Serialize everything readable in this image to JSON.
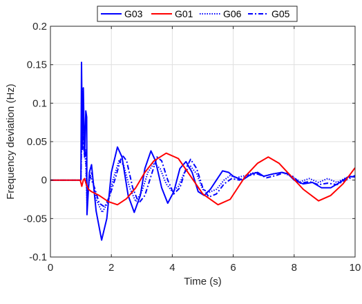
{
  "chart_data": {
    "type": "line",
    "xlabel": "Time (s)",
    "ylabel": "Frequency deviation (Hz)",
    "xlim": [
      0,
      10
    ],
    "ylim": [
      -0.1,
      0.2
    ],
    "xticks": [
      0,
      2,
      4,
      6,
      8,
      10
    ],
    "yticks": [
      -0.1,
      -0.05,
      0,
      0.05,
      0.1,
      0.15,
      0.2
    ],
    "ytick_labels": [
      "-0.1",
      "-0.05",
      "0",
      "0.05",
      "0.1",
      "0.15",
      "0.2"
    ],
    "xtick_labels": [
      "0",
      "2",
      "4",
      "6",
      "8",
      "10"
    ],
    "grid": true,
    "legend_position": "top-center",
    "series": [
      {
        "name": "G03",
        "color": "#0000ff",
        "dash": "solid",
        "points": [
          [
            0,
            0
          ],
          [
            1.0,
            0
          ],
          [
            1.02,
            0.153
          ],
          [
            1.05,
            0.04
          ],
          [
            1.08,
            0.12
          ],
          [
            1.12,
            0.03
          ],
          [
            1.16,
            0.09
          ],
          [
            1.19,
            0.082
          ],
          [
            1.2,
            -0.045
          ],
          [
            1.28,
            0.01
          ],
          [
            1.35,
            0.02
          ],
          [
            1.5,
            -0.04
          ],
          [
            1.68,
            -0.078
          ],
          [
            1.85,
            -0.05
          ],
          [
            2.0,
            0.01
          ],
          [
            2.2,
            0.043
          ],
          [
            2.35,
            0.03
          ],
          [
            2.55,
            -0.02
          ],
          [
            2.75,
            -0.042
          ],
          [
            2.95,
            -0.02
          ],
          [
            3.1,
            0.015
          ],
          [
            3.3,
            0.038
          ],
          [
            3.45,
            0.025
          ],
          [
            3.65,
            -0.01
          ],
          [
            3.85,
            -0.03
          ],
          [
            4.05,
            -0.015
          ],
          [
            4.25,
            0.015
          ],
          [
            4.45,
            0.024
          ],
          [
            4.65,
            0.01
          ],
          [
            4.85,
            -0.015
          ],
          [
            5.05,
            -0.02
          ],
          [
            5.25,
            -0.012
          ],
          [
            5.45,
            0.0
          ],
          [
            5.65,
            0.012
          ],
          [
            5.85,
            0.01
          ],
          [
            6.0,
            0.005
          ],
          [
            6.3,
            0.0
          ],
          [
            6.6,
            0.008
          ],
          [
            6.8,
            0.01
          ],
          [
            7.0,
            0.005
          ],
          [
            7.3,
            0.008
          ],
          [
            7.6,
            0.01
          ],
          [
            7.8,
            0.008
          ],
          [
            8.0,
            0.0
          ],
          [
            8.3,
            -0.005
          ],
          [
            8.6,
            -0.003
          ],
          [
            8.9,
            -0.01
          ],
          [
            9.2,
            -0.01
          ],
          [
            9.5,
            -0.003
          ],
          [
            9.8,
            0.005
          ],
          [
            10.0,
            0.004
          ]
        ]
      },
      {
        "name": "G01",
        "color": "#ff0000",
        "dash": "solid",
        "points": [
          [
            0,
            0
          ],
          [
            0.98,
            0
          ],
          [
            1.03,
            -0.008
          ],
          [
            1.08,
            0.0
          ],
          [
            1.12,
            0.002
          ],
          [
            1.18,
            -0.006
          ],
          [
            1.25,
            -0.012
          ],
          [
            1.35,
            -0.015
          ],
          [
            1.6,
            -0.02
          ],
          [
            1.9,
            -0.028
          ],
          [
            2.2,
            -0.032
          ],
          [
            2.5,
            -0.024
          ],
          [
            2.8,
            -0.01
          ],
          [
            3.1,
            0.01
          ],
          [
            3.4,
            0.025
          ],
          [
            3.8,
            0.035
          ],
          [
            4.2,
            0.028
          ],
          [
            4.6,
            0.005
          ],
          [
            5.0,
            -0.018
          ],
          [
            5.5,
            -0.032
          ],
          [
            5.9,
            -0.025
          ],
          [
            6.4,
            0.005
          ],
          [
            6.8,
            0.022
          ],
          [
            7.15,
            0.03
          ],
          [
            7.5,
            0.022
          ],
          [
            7.9,
            0.005
          ],
          [
            8.3,
            -0.012
          ],
          [
            8.8,
            -0.027
          ],
          [
            9.2,
            -0.02
          ],
          [
            9.6,
            -0.005
          ],
          [
            10.0,
            0.016
          ]
        ]
      },
      {
        "name": "G06",
        "color": "#0000ff",
        "dash": "dotted",
        "points": [
          [
            0,
            0
          ],
          [
            1.0,
            0
          ],
          [
            1.02,
            0.045
          ],
          [
            1.05,
            0.12
          ],
          [
            1.08,
            0.06
          ],
          [
            1.12,
            0.04
          ],
          [
            1.16,
            0.02
          ],
          [
            1.2,
            -0.03
          ],
          [
            1.28,
            0.002
          ],
          [
            1.35,
            0.01
          ],
          [
            1.5,
            -0.025
          ],
          [
            1.7,
            -0.042
          ],
          [
            1.9,
            -0.028
          ],
          [
            2.05,
            0.0
          ],
          [
            2.25,
            0.025
          ],
          [
            2.4,
            0.02
          ],
          [
            2.6,
            -0.01
          ],
          [
            2.8,
            -0.028
          ],
          [
            3.0,
            -0.015
          ],
          [
            3.2,
            0.01
          ],
          [
            3.4,
            0.022
          ],
          [
            3.6,
            0.015
          ],
          [
            3.8,
            -0.005
          ],
          [
            4.0,
            -0.015
          ],
          [
            4.2,
            -0.008
          ],
          [
            4.4,
            0.01
          ],
          [
            4.6,
            0.018
          ],
          [
            4.8,
            0.008
          ],
          [
            5.0,
            -0.012
          ],
          [
            5.2,
            -0.016
          ],
          [
            5.45,
            -0.012
          ],
          [
            5.7,
            0.0
          ],
          [
            5.9,
            0.006
          ],
          [
            6.1,
            0.003
          ],
          [
            6.4,
            0.006
          ],
          [
            6.7,
            0.01
          ],
          [
            7.0,
            0.005
          ],
          [
            7.3,
            0.008
          ],
          [
            7.6,
            0.01
          ],
          [
            7.9,
            0.005
          ],
          [
            8.2,
            -0.002
          ],
          [
            8.5,
            0.002
          ],
          [
            8.8,
            -0.003
          ],
          [
            9.1,
            0.002
          ],
          [
            9.4,
            -0.003
          ],
          [
            9.7,
            0.003
          ],
          [
            10.0,
            0.005
          ]
        ]
      },
      {
        "name": "G05",
        "color": "#0000ff",
        "dash": "dashdot",
        "points": [
          [
            0,
            0
          ],
          [
            1.0,
            0
          ],
          [
            1.02,
            0.05
          ],
          [
            1.05,
            0.11
          ],
          [
            1.08,
            0.05
          ],
          [
            1.12,
            0.03
          ],
          [
            1.16,
            0.04
          ],
          [
            1.2,
            -0.02
          ],
          [
            1.3,
            0.005
          ],
          [
            1.45,
            -0.01
          ],
          [
            1.6,
            -0.03
          ],
          [
            1.78,
            -0.035
          ],
          [
            1.95,
            -0.02
          ],
          [
            2.15,
            0.005
          ],
          [
            2.35,
            0.033
          ],
          [
            2.5,
            0.025
          ],
          [
            2.7,
            -0.01
          ],
          [
            2.9,
            -0.03
          ],
          [
            3.1,
            -0.02
          ],
          [
            3.3,
            0.005
          ],
          [
            3.5,
            0.03
          ],
          [
            3.65,
            0.025
          ],
          [
            3.85,
            0.0
          ],
          [
            4.05,
            -0.018
          ],
          [
            4.25,
            -0.01
          ],
          [
            4.45,
            0.015
          ],
          [
            4.6,
            0.027
          ],
          [
            4.8,
            0.015
          ],
          [
            5.0,
            -0.01
          ],
          [
            5.2,
            -0.022
          ],
          [
            5.45,
            -0.018
          ],
          [
            5.7,
            -0.005
          ],
          [
            5.95,
            0.002
          ],
          [
            6.2,
            0.0
          ],
          [
            6.5,
            0.006
          ],
          [
            6.8,
            0.008
          ],
          [
            7.1,
            0.003
          ],
          [
            7.4,
            0.006
          ],
          [
            7.7,
            0.01
          ],
          [
            7.95,
            0.005
          ],
          [
            8.2,
            -0.004
          ],
          [
            8.5,
            -0.002
          ],
          [
            8.8,
            -0.006
          ],
          [
            9.1,
            -0.004
          ],
          [
            9.4,
            -0.006
          ],
          [
            9.7,
            0.0
          ],
          [
            10.0,
            0.006
          ]
        ]
      }
    ]
  }
}
